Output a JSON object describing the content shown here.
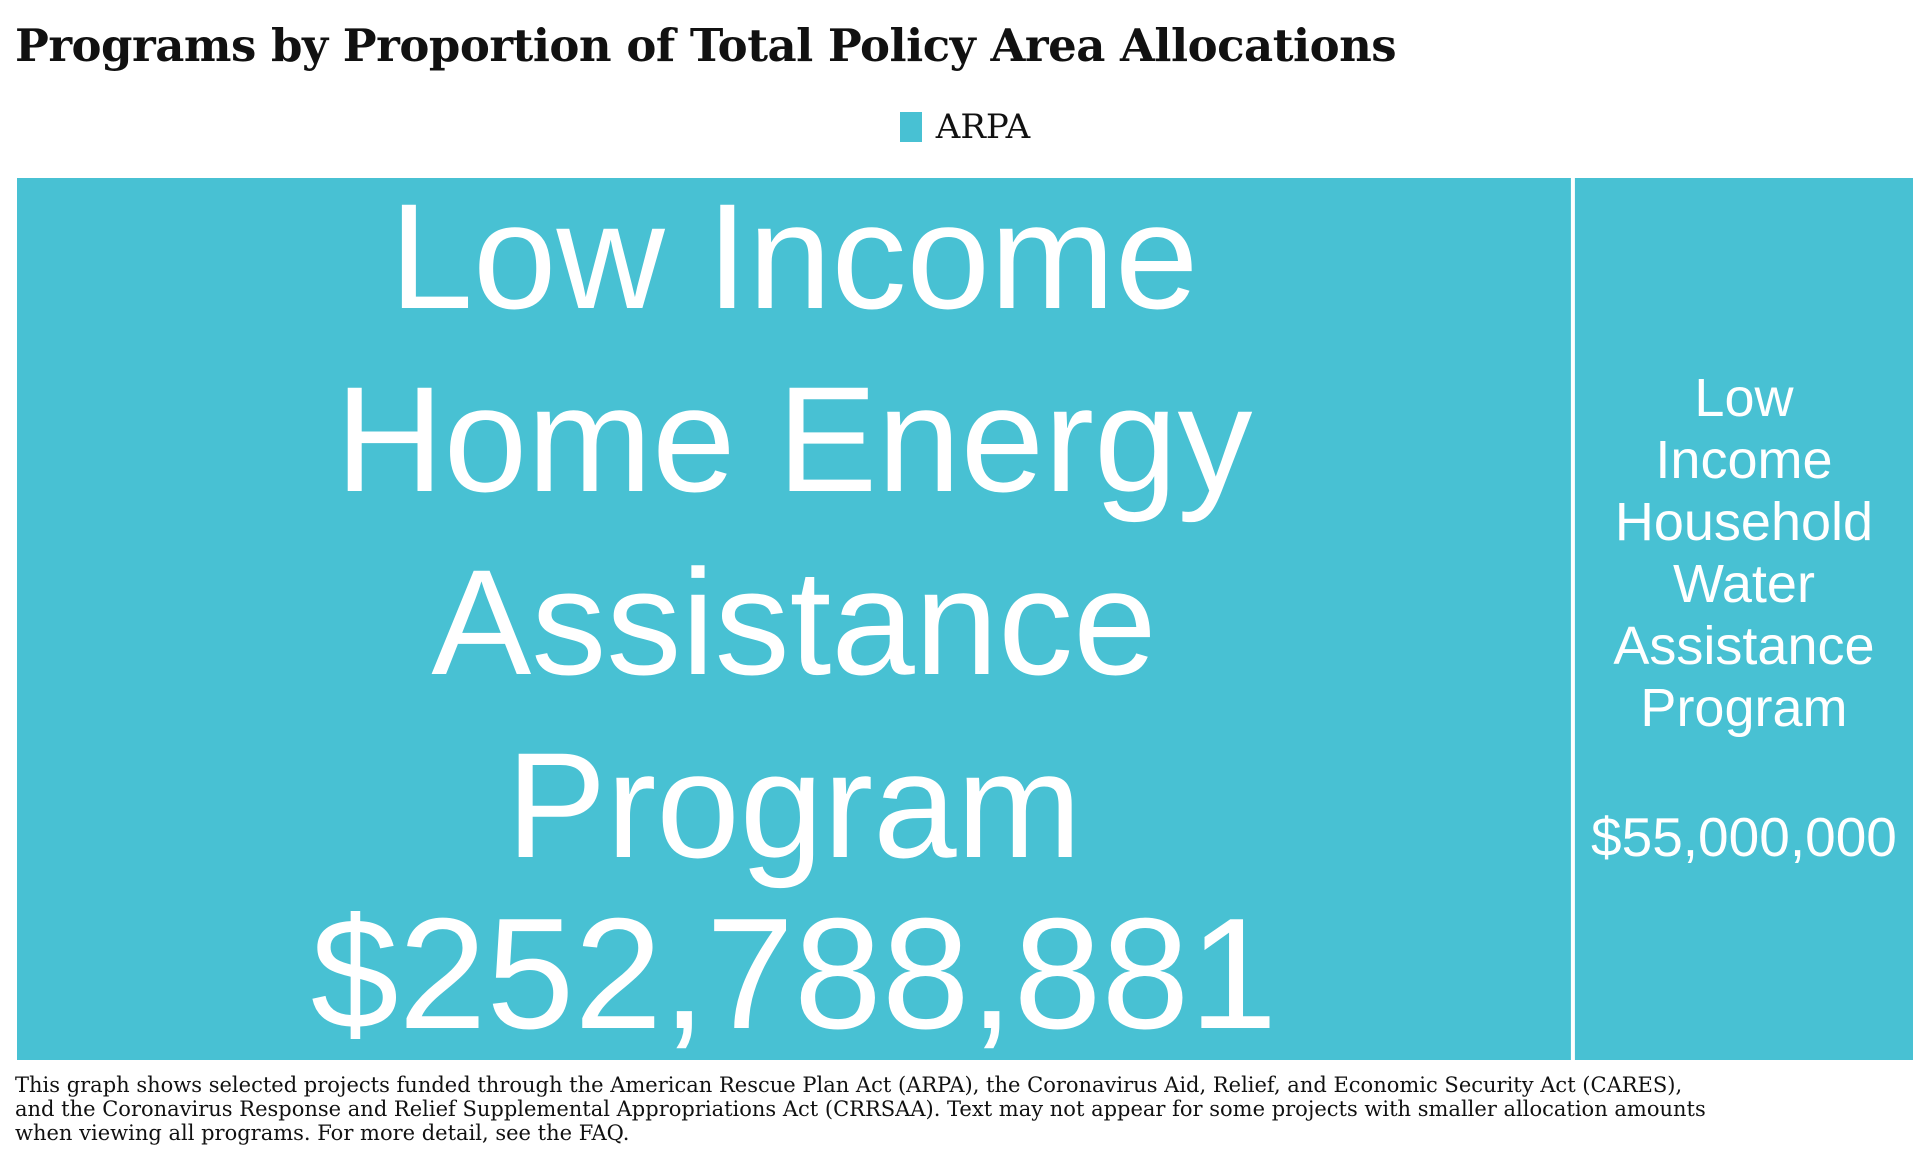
{
  "title": "Programs by Proportion of Total Policy Area Allocations",
  "legend": {
    "items": [
      {
        "label": "ARPA",
        "color": "#48c1d3"
      }
    ]
  },
  "chart_data": {
    "type": "treemap",
    "series": [
      {
        "name": "ARPA",
        "color": "#48c1d3",
        "items": [
          {
            "label_lines": [
              "Low Income",
              "Home Energy",
              "Assistance",
              "Program"
            ],
            "value": 252788881,
            "value_label": "$252,788,881"
          },
          {
            "label_lines": [
              "Low",
              "Income",
              "Household",
              "Water",
              "Assistance",
              "Program"
            ],
            "value": 55000000,
            "value_label": "$55,000,000"
          }
        ]
      }
    ],
    "legend_position": "top-center"
  },
  "footnote": {
    "lines": [
      "This graph shows selected projects funded through the American Rescue Plan Act (ARPA), the Coronavirus Aid, Relief, and Economic Security Act (CARES),",
      "and the Coronavirus Response and Relief Supplemental Appropriations Act (CRRSAA). Text may not appear for some projects with smaller allocation amounts",
      " when viewing all programs. For more detail, see the FAQ."
    ]
  }
}
